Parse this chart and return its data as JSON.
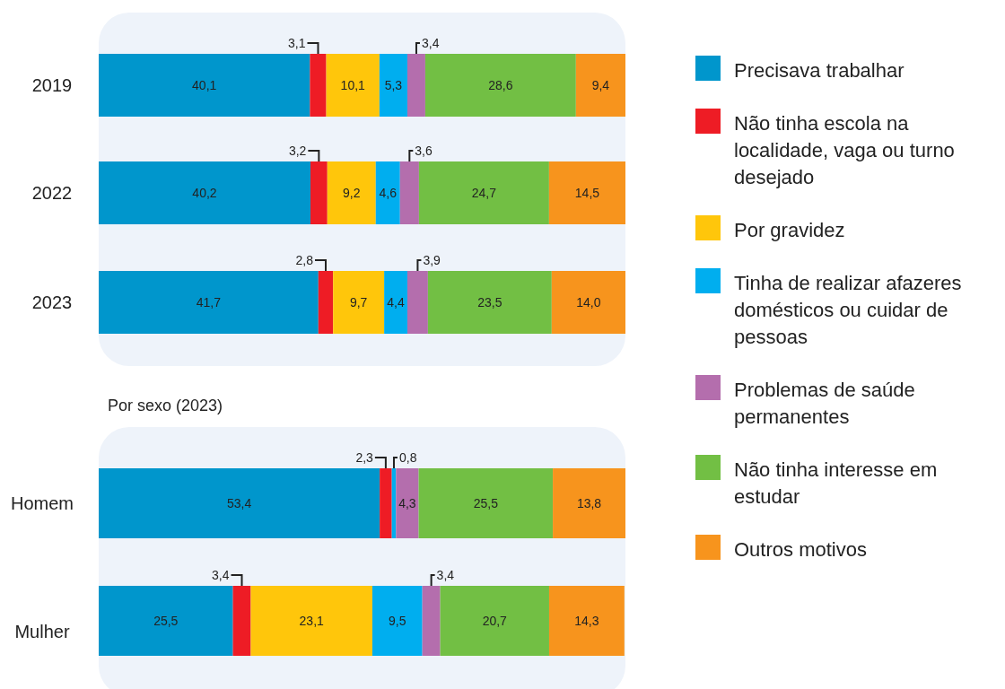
{
  "chart_data": [
    {
      "type": "bar",
      "orientation": "horizontal",
      "stacked": true,
      "legend": "right",
      "categories": [
        "2019",
        "2022",
        "2023"
      ],
      "series": [
        {
          "name": "Precisava trabalhar",
          "color": "#0096cc",
          "values": [
            40.1,
            40.2,
            41.7
          ],
          "value_labels": [
            "40,1",
            "40,2",
            "41,7"
          ]
        },
        {
          "name": "Não tinha escola na localidade, vaga ou turno desejado",
          "color": "#ee1c25",
          "values": [
            3.1,
            3.2,
            2.8
          ],
          "value_labels": [
            "3,1",
            "3,2",
            "2,8"
          ]
        },
        {
          "name": "Por gravidez",
          "color": "#ffc60b",
          "values": [
            10.1,
            9.2,
            9.7
          ],
          "value_labels": [
            "10,1",
            "9,2",
            "9,7"
          ]
        },
        {
          "name": "Tinha de realizar afazeres domésticos ou cuidar de pessoas",
          "color": "#00aeef",
          "values": [
            5.3,
            4.6,
            4.4
          ],
          "value_labels": [
            "5,3",
            "4,6",
            "4,4"
          ]
        },
        {
          "name": "Problemas de saúde permanentes",
          "color": "#b46ead",
          "values": [
            3.4,
            3.6,
            3.9
          ],
          "value_labels": [
            "3,4",
            "3,6",
            "3,9"
          ]
        },
        {
          "name": "Não tinha interesse em estudar",
          "color": "#72bf44",
          "values": [
            28.6,
            24.7,
            23.5
          ],
          "value_labels": [
            "28,6",
            "24,7",
            "23,5"
          ]
        },
        {
          "name": "Outros motivos",
          "color": "#f7941d",
          "values": [
            9.4,
            14.5,
            14.0
          ],
          "value_labels": [
            "9,4",
            "14,5",
            "14,0"
          ]
        }
      ]
    },
    {
      "type": "bar",
      "orientation": "horizontal",
      "stacked": true,
      "title": "Por sexo (2023)",
      "categories": [
        "Homem",
        "Mulher"
      ],
      "series": [
        {
          "color": "#0096cc",
          "values": [
            53.4,
            25.5
          ],
          "value_labels": [
            "53,4",
            "25,5"
          ]
        },
        {
          "color": "#ee1c25",
          "values": [
            2.3,
            3.4
          ],
          "value_labels": [
            "2,3",
            "3,4"
          ]
        },
        {
          "color": "#ffc60b",
          "values": [
            null,
            23.1
          ],
          "value_labels": [
            null,
            "23,1"
          ]
        },
        {
          "color": "#00aeef",
          "values": [
            0.8,
            9.5
          ],
          "value_labels": [
            "0,8",
            "9,5"
          ]
        },
        {
          "color": "#b46ead",
          "values": [
            4.3,
            3.4
          ],
          "value_labels": [
            "4,3",
            "3,4"
          ]
        },
        {
          "color": "#72bf44",
          "values": [
            25.5,
            20.7
          ],
          "value_labels": [
            "25,5",
            "20,7"
          ]
        },
        {
          "color": "#f7941d",
          "values": [
            13.8,
            14.3
          ],
          "value_labels": [
            "13,8",
            "14,3"
          ]
        }
      ]
    }
  ]
}
